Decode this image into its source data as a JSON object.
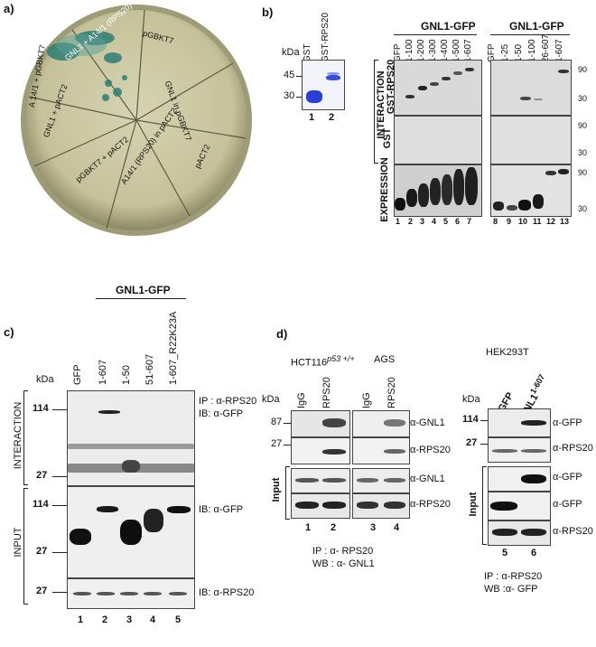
{
  "panel_a": {
    "label": "a)",
    "sectors": [
      "GNL1 + A14/1 (RPS20)",
      "pGBKT7",
      "GNL1 in pGBKT7",
      "pACT2",
      "A14/1 (RPS20) in pACT2",
      "pGBKT7 + pACT2",
      "GNL1 + pACT2",
      "A 14/1 + pGBKT7"
    ]
  },
  "panel_b": {
    "label": "b)",
    "kda": "kDa",
    "gel_lanes": [
      "GST",
      "GST-RPS20"
    ],
    "gel_markers": [
      "45",
      "30"
    ],
    "gel_numbers": [
      "1",
      "2"
    ],
    "group1": "GNL1-GFP",
    "group2": "GNL1-GFP",
    "lanes1": [
      "GFP",
      "1-100",
      "1-200",
      "1-300",
      "1-400",
      "1-500",
      "1-607"
    ],
    "lanes2": [
      "GFP",
      "1-25",
      "1-50",
      "1-100",
      "26-607",
      "1-607"
    ],
    "row_labels": [
      "GST-RPS20",
      "GST",
      "EXPRESSION"
    ],
    "interaction": "INTERACTION",
    "markers_r": [
      "90",
      "30",
      "90",
      "30",
      "90",
      "30"
    ],
    "numbers": [
      "1",
      "2",
      "3",
      "4",
      "5",
      "6",
      "7",
      "8",
      "9",
      "10",
      "11",
      "12",
      "13"
    ]
  },
  "panel_c": {
    "label": "c)",
    "group": "GNL1-GFP",
    "kda": "kDa",
    "lanes": [
      "GFP",
      "1-607",
      "1-50",
      "51-607",
      "1-607_R22K23A"
    ],
    "top_markers": [
      "114",
      "27"
    ],
    "mid_markers": [
      "114",
      "27"
    ],
    "bot_markers": [
      "27"
    ],
    "interaction": "INTERACTION",
    "input": "INPUT",
    "ip": "IP : α-RPS20",
    "ib1": "IB: α-GFP",
    "ib2": "IB: α-GFP",
    "ib3": "IB: α-RPS20",
    "numbers": [
      "1",
      "2",
      "3",
      "4",
      "5"
    ]
  },
  "panel_d": {
    "label": "d)",
    "cell1": "HCT116",
    "cell1_sup": "p53 +/+",
    "cell2": "AGS",
    "cell3": "HEK293T",
    "kda": "kDa",
    "lanes_left": [
      "IgG",
      "RPS20",
      "IgG",
      "RPS20"
    ],
    "lanes_right": [
      "GFP",
      "GNL1"
    ],
    "lanes_right_sup": "1-607",
    "markers_left": [
      "87",
      "27"
    ],
    "markers_right": [
      "114",
      "27"
    ],
    "blots_left": [
      "α-GNL1",
      "α-RPS20",
      "α-GNL1",
      "α-RPS20"
    ],
    "blots_right": [
      "α-GFP",
      "α-RPS20",
      "α-GFP",
      "α-GFP",
      "α-RPS20"
    ],
    "input": "Input",
    "numbers_left": [
      "1",
      "2",
      "3",
      "4"
    ],
    "numbers_right": [
      "5",
      "6"
    ],
    "ip_left": "IP : α- RPS20",
    "wb_left": "WB : α- GNL1",
    "ip_right": "IP : α-RPS20",
    "wb_right": "WB :α- GFP"
  }
}
